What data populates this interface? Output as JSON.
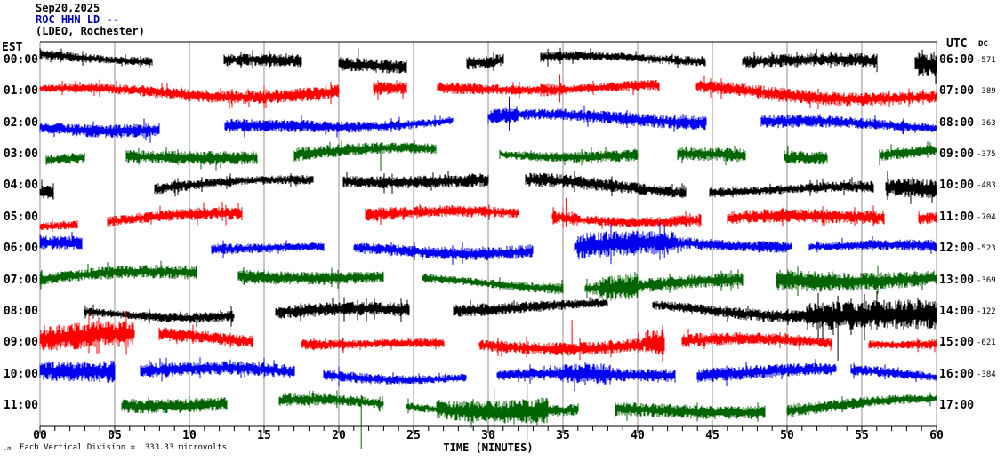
{
  "header": {
    "date": "Sep20,2025",
    "station": "ROC HHN LD --",
    "location": "(LDEO, Rochester)",
    "station_color": "#0000b4"
  },
  "axes": {
    "left_header": "EST",
    "right_header": "UTC",
    "dc_header": "DC",
    "x_title": "TIME (MINUTES)",
    "x_tick_labels": [
      "00",
      "05",
      "10",
      "15",
      "20",
      "25",
      "30",
      "35",
      "40",
      "45",
      "50",
      "55",
      "60"
    ],
    "x_minor_ticks_per_minute": 1
  },
  "footer": {
    "scale_note": "Each Vertical Division =  333.33 microvolts",
    "watermark": ".m"
  },
  "chart_data": {
    "type": "seismogram-helicorder",
    "title": "ROC HHN LD -- (LDEO, Rochester) Sep20,2025",
    "x_range_minutes": [
      0,
      60
    ],
    "xlabel": "TIME (MINUTES)",
    "vertical_division_microvolts": 333.33,
    "grid": "vertical 5-minute gray lines",
    "palette": {
      "black": "#000000",
      "red": "#ff0000",
      "blue": "#0000ee",
      "green": "#006400",
      "grid": "#909090",
      "frame": "#000000"
    },
    "rows": [
      {
        "est": "00:00",
        "utc": "06:00",
        "dc": "-571",
        "color": "black",
        "segments": [
          [
            0,
            7.5
          ],
          [
            12.3,
            17.5
          ],
          [
            20,
            24.5
          ],
          [
            28.6,
            31
          ],
          [
            33.5,
            44.5
          ],
          [
            47,
            56
          ],
          [
            58.6,
            60
          ]
        ],
        "bursts": [
          [
            58.6,
            60,
            1.7
          ]
        ],
        "spikes": [
          [
            21.3,
            14,
            10
          ]
        ]
      },
      {
        "est": "01:00",
        "utc": "07:00",
        "dc": "-389",
        "color": "red",
        "segments": [
          [
            0,
            20
          ],
          [
            22.3,
            24.5
          ],
          [
            26.6,
            41.4
          ],
          [
            43.9,
            60
          ]
        ],
        "bursts": [
          [
            33.5,
            35.2,
            1.6
          ]
        ],
        "spikes": [
          [
            34.8,
            20,
            12
          ]
        ]
      },
      {
        "est": "02:00",
        "utc": "08:00",
        "dc": "-363",
        "color": "blue",
        "segments": [
          [
            0,
            8
          ],
          [
            12.4,
            27.6
          ],
          [
            30,
            44.6
          ],
          [
            48.3,
            60
          ]
        ],
        "bursts": [
          [
            30,
            32,
            1.5
          ]
        ],
        "spikes": [
          [
            31.4,
            30,
            8
          ]
        ]
      },
      {
        "est": "03:00",
        "utc": "09:00",
        "dc": "-375",
        "color": "green",
        "segments": [
          [
            0.4,
            3
          ],
          [
            5.8,
            14.5
          ],
          [
            17,
            26.5
          ],
          [
            30.8,
            40
          ],
          [
            42.7,
            47.2
          ],
          [
            49.8,
            52.7
          ],
          [
            56.2,
            60
          ]
        ],
        "bursts": [],
        "spikes": [
          [
            22.8,
            8,
            18
          ]
        ]
      },
      {
        "est": "04:00",
        "utc": "10:00",
        "dc": "-483",
        "color": "black",
        "segments": [
          [
            0,
            0.9
          ],
          [
            7.7,
            18.3
          ],
          [
            20.3,
            30
          ],
          [
            32.5,
            43.2
          ],
          [
            44.8,
            55.8
          ],
          [
            56.6,
            60
          ]
        ],
        "bursts": [
          [
            56.6,
            60,
            1.5
          ]
        ],
        "spikes": []
      },
      {
        "est": "05:00",
        "utc": "11:00",
        "dc": "-704",
        "color": "red",
        "segments": [
          [
            0,
            2.5
          ],
          [
            4.5,
            13.5
          ],
          [
            21.8,
            32
          ],
          [
            34.3,
            44.2
          ],
          [
            46,
            56.5
          ],
          [
            58.8,
            60
          ]
        ],
        "bursts": [
          [
            34.3,
            36,
            1.6
          ]
        ],
        "spikes": [
          [
            35.2,
            22,
            10
          ]
        ]
      },
      {
        "est": "06:00",
        "utc": "12:00",
        "dc": "-523",
        "color": "blue",
        "segments": [
          [
            0,
            2.8
          ],
          [
            11.5,
            19
          ],
          [
            21,
            33
          ],
          [
            35.8,
            50.3
          ],
          [
            51.5,
            60
          ]
        ],
        "bursts": [
          [
            36,
            42.5,
            1.9
          ],
          [
            48,
            50,
            1.3
          ]
        ],
        "spikes": [
          [
            41.8,
            26,
            10
          ]
        ]
      },
      {
        "est": "07:00",
        "utc": "13:00",
        "dc": "-369",
        "color": "green",
        "segments": [
          [
            0,
            10.5
          ],
          [
            13.3,
            23
          ],
          [
            25.6,
            35
          ],
          [
            36.5,
            47
          ],
          [
            49.3,
            60
          ]
        ],
        "bursts": [
          [
            37.5,
            40,
            2.0
          ],
          [
            49.3,
            60,
            1.6
          ]
        ],
        "spikes": []
      },
      {
        "est": "08:00",
        "utc": "14:00",
        "dc": "-122",
        "color": "black",
        "segments": [
          [
            3,
            13
          ],
          [
            15.8,
            24.7
          ],
          [
            27.7,
            38
          ],
          [
            41,
            60
          ]
        ],
        "bursts": [
          [
            51.3,
            60,
            2.1
          ]
        ],
        "spikes": [
          [
            53.4,
            18,
            55
          ]
        ]
      },
      {
        "est": "09:00",
        "utc": "15:00",
        "dc": "-621",
        "color": "red",
        "segments": [
          [
            0,
            6.3
          ],
          [
            8,
            14.2
          ],
          [
            17.5,
            27
          ],
          [
            29.4,
            41.8
          ],
          [
            43,
            53
          ],
          [
            55.5,
            60
          ]
        ],
        "bursts": [
          [
            0,
            6.3,
            1.9
          ],
          [
            40.6,
            42.3,
            2.0
          ]
        ],
        "spikes": [
          [
            35.6,
            26,
            10
          ]
        ]
      },
      {
        "est": "10:00",
        "utc": "16:00",
        "dc": "-384",
        "color": "blue",
        "segments": [
          [
            0,
            5
          ],
          [
            6.7,
            17
          ],
          [
            19,
            28.5
          ],
          [
            30.6,
            42.5
          ],
          [
            44,
            53.3
          ],
          [
            54.3,
            60
          ]
        ],
        "bursts": [
          [
            0,
            5,
            1.7
          ],
          [
            34.8,
            38.2,
            1.6
          ]
        ],
        "spikes": []
      },
      {
        "est": "11:00",
        "utc": "17:00",
        "dc": "",
        "color": "green",
        "segments": [
          [
            5.5,
            12.5
          ],
          [
            16,
            23
          ],
          [
            24.5,
            36
          ],
          [
            38.5,
            48.5
          ],
          [
            50,
            60
          ]
        ],
        "bursts": [
          [
            26.5,
            34,
            2.4
          ],
          [
            30,
            33.5,
            1.5
          ]
        ],
        "spikes": [
          [
            21.5,
            12,
            48
          ],
          [
            30.4,
            20,
            40
          ],
          [
            32.6,
            25,
            38
          ]
        ]
      }
    ]
  }
}
